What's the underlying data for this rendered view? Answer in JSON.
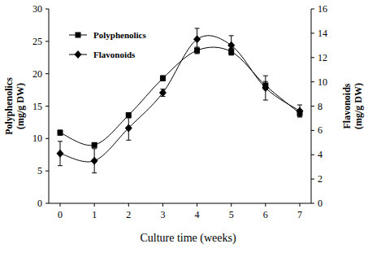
{
  "chart_data": {
    "type": "line",
    "x_label": "Culture time (weeks)",
    "y_label": "Polyphenolics (mg/g DW)",
    "y2_label": "Flavonoids (mg/g DW)",
    "categories": [
      "0",
      "1",
      "2",
      "3",
      "4",
      "5",
      "6",
      "7"
    ],
    "ylim": [
      0,
      30
    ],
    "yticks": [
      0,
      5,
      10,
      15,
      20,
      25,
      30
    ],
    "y2lim": [
      0,
      16
    ],
    "y2ticks": [
      0,
      2,
      4,
      6,
      8,
      10,
      12,
      14,
      16
    ],
    "grid": false,
    "legend": "upper left",
    "line_style": "smooth",
    "series": [
      {
        "name": "Polyphenolics",
        "color": "#000000",
        "marker": "square",
        "values": [
          10.9,
          9.0,
          13.6,
          19.3,
          23.6,
          23.4,
          18.2,
          13.9
        ],
        "errors": [
          0.4,
          0.3,
          0.4,
          0.4,
          0.5,
          0.5,
          0.6,
          0.5
        ]
      },
      {
        "name": "Flavonoids",
        "color": "#000000",
        "marker": "diamond",
        "axis": "y2",
        "values": [
          4.1,
          3.5,
          6.2,
          9.1,
          13.5,
          13.0,
          9.5,
          7.6
        ],
        "errors": [
          1.0,
          1.0,
          1.0,
          0.3,
          0.9,
          0.8,
          1.0,
          0.5
        ]
      }
    ]
  }
}
